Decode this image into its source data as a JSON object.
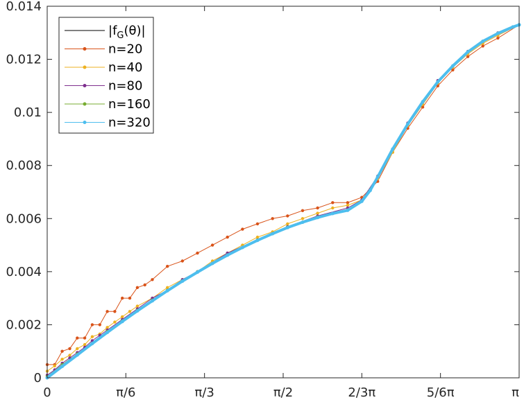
{
  "chart_data": {
    "type": "line",
    "title": "",
    "xlabel": "",
    "ylabel": "",
    "xlim": [
      0,
      3.14159
    ],
    "ylim": [
      0,
      0.014
    ],
    "grid": false,
    "legend_position": "top-left",
    "x_ticks": [
      {
        "value": 0,
        "label": "0"
      },
      {
        "value": 0.5236,
        "label": "π/6"
      },
      {
        "value": 1.0472,
        "label": "π/3"
      },
      {
        "value": 1.5708,
        "label": "π/2"
      },
      {
        "value": 2.0944,
        "label": "2/3π"
      },
      {
        "value": 2.618,
        "label": "5/6π"
      },
      {
        "value": 3.1416,
        "label": "π"
      }
    ],
    "y_ticks": [
      {
        "value": 0,
        "label": "0"
      },
      {
        "value": 0.002,
        "label": "0.002"
      },
      {
        "value": 0.004,
        "label": "0.004"
      },
      {
        "value": 0.006,
        "label": "0.006"
      },
      {
        "value": 0.008,
        "label": "0.008"
      },
      {
        "value": 0.01,
        "label": "0.01"
      },
      {
        "value": 0.012,
        "label": "0.012"
      },
      {
        "value": 0.014,
        "label": "0.014"
      }
    ],
    "legend": {
      "entries": [
        {
          "base": "|f",
          "sub": "G",
          "tail": "(θ)|",
          "color": "#000000",
          "marker": false
        },
        {
          "text": "n=20",
          "color": "#D95319",
          "marker": true
        },
        {
          "text": "n=40",
          "color": "#EDB120",
          "marker": true
        },
        {
          "text": "n=80",
          "color": "#7E2F8E",
          "marker": true
        },
        {
          "text": "n=160",
          "color": "#77AC30",
          "marker": true
        },
        {
          "text": "n=320",
          "color": "#4DBEEE",
          "marker": true
        }
      ]
    },
    "series": [
      {
        "key": "fG",
        "color": "#000000",
        "marker": false,
        "x": [
          0,
          0.1,
          0.2,
          0.3,
          0.4,
          0.5,
          0.6,
          0.7,
          0.8,
          0.9,
          1.0,
          1.1,
          1.2,
          1.3,
          1.4,
          1.5,
          1.6,
          1.7,
          1.8,
          1.9,
          2.0,
          2.0944,
          2.15,
          2.2,
          2.3,
          2.4,
          2.5,
          2.6,
          2.7,
          2.8,
          2.9,
          3.0,
          3.1,
          3.1416
        ],
        "y": [
          0,
          0.00043,
          0.00086,
          0.00129,
          0.00171,
          0.00212,
          0.00252,
          0.0029,
          0.00328,
          0.00364,
          0.00398,
          0.00431,
          0.00462,
          0.00491,
          0.00518,
          0.00543,
          0.00566,
          0.00586,
          0.00604,
          0.00619,
          0.00631,
          0.00665,
          0.00706,
          0.00757,
          0.00862,
          0.00956,
          0.0104,
          0.01115,
          0.01175,
          0.01228,
          0.01268,
          0.01298,
          0.01322,
          0.0133
        ]
      },
      {
        "key": "n20",
        "color": "#D95319",
        "marker": true,
        "x": [
          0,
          0.05,
          0.1,
          0.15,
          0.2,
          0.25,
          0.3,
          0.35,
          0.4,
          0.45,
          0.5,
          0.55,
          0.6,
          0.65,
          0.7,
          0.8,
          0.9,
          1.0,
          1.1,
          1.2,
          1.3,
          1.4,
          1.5,
          1.6,
          1.7,
          1.8,
          1.9,
          2.0,
          2.0944,
          2.2,
          2.3,
          2.4,
          2.5,
          2.6,
          2.7,
          2.8,
          2.9,
          3.0,
          3.1416
        ],
        "y": [
          0.0005,
          0.0005,
          0.001,
          0.0011,
          0.0015,
          0.0015,
          0.002,
          0.002,
          0.0025,
          0.0025,
          0.003,
          0.003,
          0.0034,
          0.0035,
          0.0037,
          0.0042,
          0.0044,
          0.0047,
          0.005,
          0.0053,
          0.0056,
          0.0058,
          0.006,
          0.0061,
          0.0063,
          0.0064,
          0.0066,
          0.0066,
          0.0068,
          0.0074,
          0.0085,
          0.0094,
          0.0102,
          0.011,
          0.0116,
          0.0121,
          0.0125,
          0.0128,
          0.0133
        ]
      },
      {
        "key": "n40",
        "color": "#EDB120",
        "marker": true,
        "x": [
          0,
          0.05,
          0.1,
          0.15,
          0.2,
          0.25,
          0.3,
          0.35,
          0.4,
          0.45,
          0.5,
          0.55,
          0.6,
          0.7,
          0.8,
          0.9,
          1.0,
          1.1,
          1.2,
          1.3,
          1.4,
          1.5,
          1.6,
          1.7,
          1.8,
          1.9,
          2.0,
          2.0944,
          2.2,
          2.3,
          2.4,
          2.5,
          2.6,
          2.7,
          2.8,
          2.9,
          3.0,
          3.1416
        ],
        "y": [
          0.00025,
          0.00045,
          0.0007,
          0.00085,
          0.0011,
          0.00125,
          0.00155,
          0.00165,
          0.0019,
          0.0021,
          0.0023,
          0.0025,
          0.0027,
          0.003,
          0.0034,
          0.0037,
          0.004,
          0.0044,
          0.0047,
          0.005,
          0.0053,
          0.0055,
          0.0058,
          0.006,
          0.0062,
          0.0064,
          0.0065,
          0.0067,
          0.0075,
          0.0085,
          0.0095,
          0.0103,
          0.0111,
          0.0117,
          0.0122,
          0.0126,
          0.0129,
          0.0133
        ]
      },
      {
        "key": "n80",
        "color": "#7E2F8E",
        "marker": true,
        "x": [
          0,
          0.05,
          0.1,
          0.15,
          0.2,
          0.25,
          0.3,
          0.35,
          0.4,
          0.5,
          0.6,
          0.7,
          0.8,
          0.9,
          1.0,
          1.2,
          1.4,
          1.6,
          1.8,
          2.0,
          2.0944,
          2.2,
          2.4,
          2.6,
          2.8,
          3.0,
          3.1416
        ],
        "y": [
          0.0001,
          0.0003,
          0.00055,
          0.00075,
          0.00095,
          0.00115,
          0.0014,
          0.0016,
          0.0018,
          0.0022,
          0.0026,
          0.003,
          0.0033,
          0.0037,
          0.004,
          0.0047,
          0.0052,
          0.0057,
          0.0061,
          0.0064,
          0.0067,
          0.0076,
          0.0096,
          0.0112,
          0.0123,
          0.013,
          0.0133
        ]
      },
      {
        "key": "n160",
        "color": "#77AC30",
        "marker": true,
        "x": [
          0,
          0.1,
          0.2,
          0.3,
          0.4,
          0.5,
          0.6,
          0.7,
          0.8,
          0.9,
          1.0,
          1.2,
          1.4,
          1.6,
          1.8,
          2.0,
          2.0944,
          2.2,
          2.4,
          2.6,
          2.8,
          3.0,
          3.1416
        ],
        "y": [
          5e-05,
          0.0005,
          0.0009,
          0.0013,
          0.00175,
          0.00215,
          0.00255,
          0.00293,
          0.0033,
          0.00366,
          0.004,
          0.00464,
          0.0052,
          0.00568,
          0.00606,
          0.00633,
          0.00666,
          0.00758,
          0.00957,
          0.01116,
          0.01229,
          0.01299,
          0.0133
        ]
      },
      {
        "key": "n320",
        "color": "#4DBEEE",
        "marker": true,
        "x": [
          0,
          0.1,
          0.2,
          0.3,
          0.4,
          0.5,
          0.6,
          0.7,
          0.8,
          0.9,
          1.0,
          1.1,
          1.2,
          1.3,
          1.4,
          1.5,
          1.6,
          1.7,
          1.8,
          1.9,
          2.0,
          2.0944,
          2.15,
          2.2,
          2.3,
          2.4,
          2.5,
          2.6,
          2.7,
          2.8,
          2.9,
          3.0,
          3.1,
          3.1416
        ],
        "y": [
          0,
          0.00043,
          0.00086,
          0.00129,
          0.00171,
          0.00212,
          0.00252,
          0.0029,
          0.00328,
          0.00364,
          0.00398,
          0.00431,
          0.00462,
          0.00491,
          0.00518,
          0.00543,
          0.00566,
          0.00586,
          0.00604,
          0.00619,
          0.00631,
          0.00665,
          0.00706,
          0.00757,
          0.00862,
          0.00956,
          0.0104,
          0.01115,
          0.01175,
          0.01228,
          0.01268,
          0.01298,
          0.01322,
          0.0133
        ]
      }
    ]
  }
}
